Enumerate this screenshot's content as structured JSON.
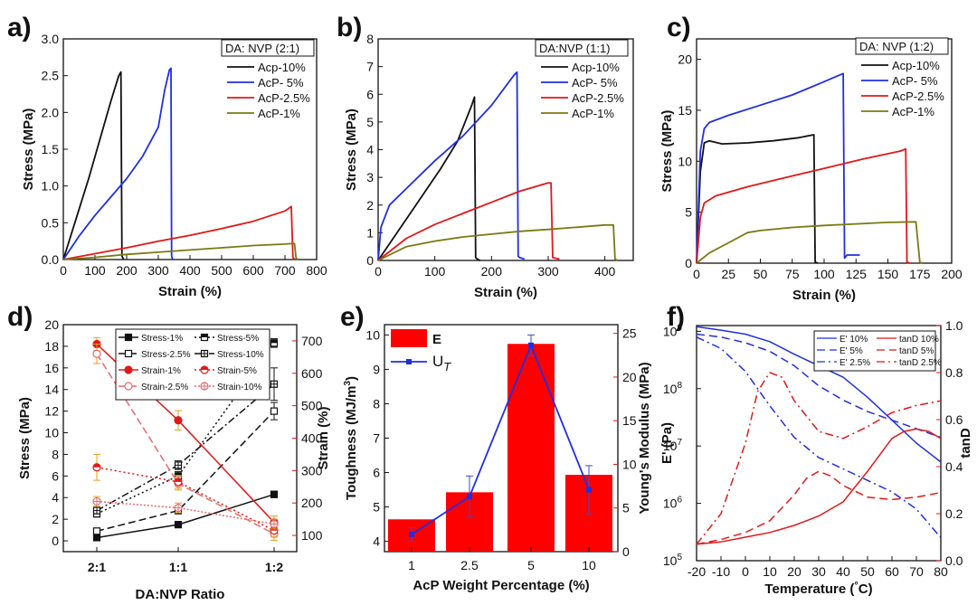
{
  "colors": {
    "black": "#111111",
    "blue": "#1f2fe0",
    "red": "#e01818",
    "olive": "#7a7a10",
    "pink": "#e86a6a"
  },
  "chart_data": [
    {
      "id": "a",
      "panel_label": "a)",
      "type": "line",
      "xlabel": "Strain (%)",
      "ylabel": "Stress (MPa)",
      "xlim": [
        0,
        800
      ],
      "ylim": [
        0,
        3.0
      ],
      "xticks": [
        0,
        100,
        200,
        300,
        400,
        500,
        600,
        700,
        800
      ],
      "yticks": [
        0.0,
        0.5,
        1.0,
        1.5,
        2.0,
        2.5,
        3.0
      ],
      "xtick_labels": [
        "0",
        "100",
        "200",
        "300",
        "400",
        "500",
        "600",
        "700",
        "800"
      ],
      "ytick_labels": [
        "0.0",
        "0.5",
        "1.0",
        "1.5",
        "2.0",
        "2.5",
        "3.0"
      ],
      "legend_title": "DA: NVP (2:1)",
      "series": [
        {
          "name": "Acp-10%",
          "color": "#111111",
          "x": [
            0,
            40,
            80,
            120,
            150,
            175,
            182,
            185,
            190
          ],
          "y": [
            0,
            0.55,
            1.1,
            1.7,
            2.15,
            2.5,
            2.55,
            0.05,
            0.0
          ]
        },
        {
          "name": "AcP- 5%",
          "color": "#1f2fe0",
          "x": [
            0,
            50,
            100,
            150,
            200,
            250,
            300,
            320,
            335,
            340,
            342,
            345
          ],
          "y": [
            0,
            0.32,
            0.6,
            0.85,
            1.1,
            1.4,
            1.8,
            2.3,
            2.58,
            2.6,
            0.05,
            0.0
          ]
        },
        {
          "name": "AcP-2.5%",
          "color": "#e01818",
          "x": [
            0,
            100,
            200,
            300,
            400,
            500,
            600,
            700,
            720,
            725,
            730
          ],
          "y": [
            0,
            0.08,
            0.16,
            0.25,
            0.33,
            0.42,
            0.52,
            0.66,
            0.72,
            0.03,
            0.0
          ]
        },
        {
          "name": "AcP-1%",
          "color": "#7a7a10",
          "x": [
            0,
            100,
            200,
            300,
            400,
            500,
            600,
            700,
            730,
            735,
            740
          ],
          "y": [
            0,
            0.03,
            0.07,
            0.1,
            0.13,
            0.16,
            0.19,
            0.21,
            0.22,
            0.02,
            0.0
          ]
        }
      ]
    },
    {
      "id": "b",
      "panel_label": "b)",
      "type": "line",
      "xlabel": "Strain (%)",
      "ylabel": "Stress (MPa)",
      "xlim": [
        0,
        450
      ],
      "ylim": [
        0,
        8
      ],
      "xticks": [
        0,
        100,
        200,
        300,
        400
      ],
      "yticks": [
        0,
        1,
        2,
        3,
        4,
        5,
        6,
        7,
        8
      ],
      "xtick_labels": [
        "0",
        "100",
        "200",
        "300",
        "400"
      ],
      "ytick_labels": [
        "0",
        "1",
        "2",
        "3",
        "4",
        "5",
        "6",
        "7",
        "8"
      ],
      "legend_title": "DA:NVP (1:1)",
      "series": [
        {
          "name": "Acp-10%",
          "color": "#111111",
          "x": [
            0,
            20,
            50,
            80,
            110,
            140,
            165,
            170,
            172,
            175,
            180
          ],
          "y": [
            0,
            0.6,
            1.5,
            2.4,
            3.3,
            4.3,
            5.6,
            5.9,
            0.1,
            0.05,
            0.0
          ]
        },
        {
          "name": "AcP- 5%",
          "color": "#1f2fe0",
          "x": [
            0,
            5,
            20,
            50,
            100,
            150,
            200,
            240,
            245,
            247,
            250,
            258
          ],
          "y": [
            0,
            1.2,
            2.0,
            2.6,
            3.6,
            4.5,
            5.6,
            6.7,
            6.8,
            0.15,
            0.1,
            0.05
          ]
        },
        {
          "name": "AcP-2.5%",
          "color": "#e01818",
          "x": [
            0,
            50,
            100,
            150,
            200,
            250,
            300,
            305,
            308,
            320
          ],
          "y": [
            0,
            0.8,
            1.3,
            1.7,
            2.1,
            2.5,
            2.8,
            2.8,
            0.1,
            0.05
          ]
        },
        {
          "name": "AcP-1%",
          "color": "#7a7a10",
          "x": [
            0,
            50,
            100,
            150,
            200,
            250,
            300,
            350,
            400,
            415,
            418,
            422
          ],
          "y": [
            0,
            0.5,
            0.7,
            0.85,
            0.95,
            1.05,
            1.12,
            1.2,
            1.28,
            1.28,
            0.05,
            0.0
          ]
        }
      ]
    },
    {
      "id": "c",
      "panel_label": "c)",
      "type": "line",
      "xlabel": "Strain (%)",
      "ylabel": "Stress (MPa)",
      "xlim": [
        0,
        200
      ],
      "ylim": [
        0,
        22
      ],
      "xticks": [
        0,
        25,
        50,
        75,
        100,
        125,
        150,
        175,
        200
      ],
      "yticks": [
        0,
        5,
        10,
        15,
        20
      ],
      "xtick_labels": [
        "0",
        "25",
        "50",
        "75",
        "100",
        "125",
        "150",
        "175",
        "200"
      ],
      "ytick_labels": [
        "0",
        "5",
        "10",
        "15",
        "20"
      ],
      "legend_title": "DA: NVP (1:2)",
      "series": [
        {
          "name": "Acp-10%",
          "color": "#111111",
          "x": [
            0,
            3,
            6,
            10,
            20,
            40,
            60,
            80,
            92,
            93,
            95
          ],
          "y": [
            0,
            9,
            11.8,
            12,
            11.7,
            11.8,
            12,
            12.3,
            12.6,
            0.1,
            0.0
          ]
        },
        {
          "name": "AcP- 5%",
          "color": "#1f2fe0",
          "x": [
            0,
            3,
            6,
            10,
            25,
            50,
            75,
            100,
            115,
            116,
            118,
            120,
            128
          ],
          "y": [
            0,
            11,
            13.2,
            13.8,
            14.5,
            15.5,
            16.5,
            17.8,
            18.6,
            0.5,
            0.8,
            0.8,
            0.8
          ]
        },
        {
          "name": "AcP-2.5%",
          "color": "#e01818",
          "x": [
            0,
            3,
            6,
            15,
            40,
            70,
            100,
            130,
            160,
            164,
            165,
            167
          ],
          "y": [
            0,
            4.5,
            5.9,
            6.6,
            7.5,
            8.4,
            9.3,
            10.2,
            11.0,
            11.2,
            0.1,
            0.0
          ]
        },
        {
          "name": "AcP-1%",
          "color": "#7a7a10",
          "x": [
            0,
            10,
            25,
            40,
            50,
            75,
            100,
            125,
            150,
            172,
            175,
            177
          ],
          "y": [
            0,
            1.0,
            2.0,
            3.0,
            3.2,
            3.5,
            3.7,
            3.85,
            4.0,
            4.05,
            0.1,
            0.0
          ]
        }
      ]
    },
    {
      "id": "d",
      "panel_label": "d)",
      "type": "line",
      "xlabel": "DA:NVP Ratio",
      "ylabel": "Stress (MPa)",
      "y2label": "Strain (%)",
      "categories": [
        "2:1",
        "1:1",
        "1:2"
      ],
      "ylim": [
        -1,
        20
      ],
      "y2lim": [
        50,
        750
      ],
      "yticks": [
        0,
        2,
        4,
        6,
        8,
        10,
        12,
        14,
        16,
        18,
        20
      ],
      "ytick_labels": [
        "0",
        "2",
        "4",
        "6",
        "8",
        "10",
        "12",
        "14",
        "16",
        "18",
        "20"
      ],
      "y2ticks": [
        100,
        200,
        300,
        400,
        500,
        600,
        700
      ],
      "y2tick_labels": [
        "100",
        "200",
        "300",
        "400",
        "500",
        "600",
        "700"
      ],
      "series": [
        {
          "name": "Stress-1%",
          "color": "#111111",
          "axis": "left",
          "dash": "",
          "marker": "square-filled",
          "values": [
            0.3,
            1.5,
            4.3
          ],
          "errors": [
            0.2,
            0.2,
            0.3
          ]
        },
        {
          "name": "Stress-2.5%",
          "color": "#111111",
          "axis": "left",
          "dash": "8,4",
          "marker": "square-open",
          "values": [
            0.9,
            2.8,
            12.0
          ],
          "errors": [
            0.2,
            0.3,
            0.8
          ]
        },
        {
          "name": "Stress-5%",
          "color": "#111111",
          "axis": "left",
          "dash": "2,3",
          "marker": "square-half",
          "values": [
            2.5,
            6.0,
            18.3
          ],
          "errors": [
            0.3,
            0.4,
            0.4
          ]
        },
        {
          "name": "Stress-10%",
          "color": "#111111",
          "axis": "left",
          "dash": "8,3,2,3",
          "marker": "square-cross",
          "values": [
            2.8,
            7.0,
            14.5
          ],
          "errors": [
            0.3,
            0.4,
            1.5
          ]
        },
        {
          "name": "Strain-1%",
          "color": "#e01818",
          "axis": "right",
          "dash": "",
          "marker": "circle-filled",
          "values": [
            690,
            455,
            140
          ],
          "errors": [
            20,
            30,
            20
          ]
        },
        {
          "name": "Strain-2.5%",
          "color": "#e86a6a",
          "axis": "right",
          "dash": "8,4",
          "marker": "circle-open",
          "values": [
            660,
            260,
            105
          ],
          "errors": [
            30,
            20,
            20
          ]
        },
        {
          "name": "Strain-5%",
          "color": "#e01818",
          "axis": "right",
          "dash": "2,3",
          "marker": "circle-half",
          "values": [
            310,
            265,
            115
          ],
          "errors": [
            40,
            20,
            20
          ]
        },
        {
          "name": "Strain-10%",
          "color": "#e86a6a",
          "axis": "right",
          "dash": "2,2",
          "marker": "circle-cross",
          "values": [
            205,
            185,
            135
          ],
          "errors": [
            15,
            15,
            15
          ]
        }
      ]
    },
    {
      "id": "e",
      "panel_label": "e)",
      "type": "bar",
      "xlabel": "AcP Weight Percentage (%)",
      "ylabel": "Toughness (MJ/m³)",
      "y2label": "Young's Modulus (MPa)",
      "ylabel_main": "Toughness (MJ/m",
      "ylabel_sup": "3",
      "ylabel_tail": ")",
      "categories": [
        "1",
        "2.5",
        "5",
        "10"
      ],
      "ylim": [
        3.7,
        10.3
      ],
      "y2lim": [
        0,
        26
      ],
      "yticks": [
        4,
        5,
        6,
        7,
        8,
        9,
        10
      ],
      "ytick_labels": [
        "4",
        "5",
        "6",
        "7",
        "8",
        "9",
        "10"
      ],
      "y2ticks": [
        0,
        5,
        10,
        15,
        20,
        25
      ],
      "y2tick_labels": [
        "0",
        "5",
        "10",
        "15",
        "20",
        "25"
      ],
      "bar_series": {
        "name": "E",
        "color": "#ff0000",
        "axis": "right",
        "values": [
          3.7,
          6.8,
          23.8,
          8.8
        ]
      },
      "line_series": {
        "name": "U",
        "name_sub": "T",
        "color": "#1f2fe0",
        "axis": "left",
        "values": [
          4.2,
          5.3,
          9.7,
          5.5
        ],
        "errors": [
          0.2,
          0.6,
          0.3,
          0.7
        ]
      }
    },
    {
      "id": "f",
      "panel_label": "f)",
      "type": "line",
      "xlabel": "Temperature (°C)",
      "ylabel": "E' (Pa)",
      "y2label": "tanD",
      "xlabel_main": "Temperature (",
      "xlabel_tail": "C)",
      "xlabel_deg": "°",
      "xlim": [
        -20,
        80
      ],
      "ylim_log": [
        5,
        9.1
      ],
      "y2lim": [
        0,
        1.0
      ],
      "xticks": [
        -20,
        -10,
        0,
        10,
        20,
        30,
        40,
        50,
        60,
        70,
        80
      ],
      "xtick_labels": [
        "-20",
        "-10",
        "0",
        "10",
        "20",
        "30",
        "40",
        "50",
        "60",
        "70",
        "80"
      ],
      "ytick_exps": [
        5,
        6,
        7,
        8,
        9
      ],
      "ytick_base": "10",
      "ytick_sups": [
        "5",
        "6",
        "7",
        "8",
        "9"
      ],
      "y2ticks": [
        0.0,
        0.2,
        0.4,
        0.6,
        0.8,
        1.0
      ],
      "y2tick_labels": [
        "0.0",
        "0.2",
        "0.4",
        "0.6",
        "0.8",
        "1.0"
      ],
      "series": [
        {
          "name": "E' 10%",
          "color": "#1f2fe0",
          "axis": "left",
          "dash": "",
          "x": [
            -20,
            -10,
            0,
            10,
            20,
            30,
            40,
            50,
            60,
            70,
            80
          ],
          "y": [
            9.08,
            9.02,
            8.95,
            8.82,
            8.6,
            8.4,
            8.2,
            7.85,
            7.45,
            7.05,
            6.72
          ]
        },
        {
          "name": "E' 5%",
          "color": "#1f2fe0",
          "axis": "left",
          "dash": "9,5",
          "x": [
            -20,
            -10,
            0,
            10,
            20,
            30,
            40,
            50,
            60,
            70,
            80
          ],
          "y": [
            8.95,
            8.9,
            8.8,
            8.65,
            8.4,
            8.05,
            7.8,
            7.6,
            7.45,
            7.3,
            7.15
          ]
        },
        {
          "name": "E' 2.5%",
          "color": "#1f2fe0",
          "axis": "left",
          "dash": "9,4,2,4",
          "x": [
            -20,
            -10,
            0,
            5,
            10,
            20,
            30,
            40,
            50,
            60,
            70,
            80
          ],
          "y": [
            8.9,
            8.7,
            8.3,
            8.0,
            7.7,
            7.15,
            6.8,
            6.6,
            6.4,
            6.2,
            5.9,
            5.4
          ]
        },
        {
          "name": "tanD 10%",
          "color": "#e01818",
          "axis": "right",
          "dash": "",
          "x": [
            -20,
            -10,
            0,
            10,
            20,
            30,
            40,
            50,
            60,
            65,
            70,
            75,
            80
          ],
          "y": [
            0.07,
            0.08,
            0.1,
            0.12,
            0.15,
            0.19,
            0.25,
            0.38,
            0.52,
            0.55,
            0.56,
            0.55,
            0.52
          ]
        },
        {
          "name": "tanD 5%",
          "color": "#e01818",
          "axis": "right",
          "dash": "9,5",
          "x": [
            -20,
            -10,
            0,
            10,
            20,
            25,
            30,
            35,
            40,
            50,
            60,
            70,
            80
          ],
          "y": [
            0.07,
            0.09,
            0.12,
            0.17,
            0.28,
            0.35,
            0.38,
            0.36,
            0.32,
            0.27,
            0.26,
            0.27,
            0.29
          ]
        },
        {
          "name": "tanD 2.5%",
          "color": "#e01818",
          "axis": "right",
          "dash": "9,4,2,4",
          "x": [
            -20,
            -10,
            0,
            5,
            10,
            15,
            20,
            30,
            40,
            50,
            60,
            70,
            80
          ],
          "y": [
            0.07,
            0.2,
            0.5,
            0.72,
            0.8,
            0.78,
            0.68,
            0.55,
            0.52,
            0.57,
            0.63,
            0.66,
            0.68
          ]
        }
      ]
    }
  ]
}
